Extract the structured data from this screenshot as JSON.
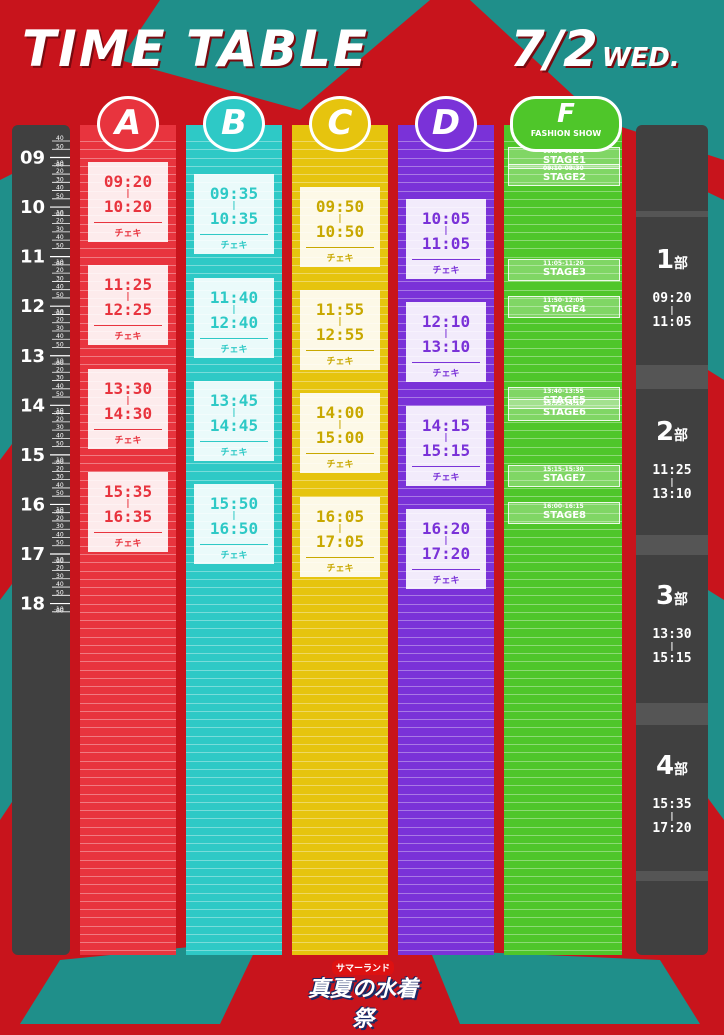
{
  "header": {
    "title": "TIME TABLE",
    "date": "7/2",
    "weekday": "WED."
  },
  "colors": {
    "background_red": "#c8141c",
    "background_teal": "#1f8f8a",
    "ruler": "#404040",
    "stage_A": "#e8343e",
    "stage_B": "#2ec9c6",
    "stage_C": "#e6c40e",
    "stage_D": "#7a32d8",
    "stage_F": "#4fc62a"
  },
  "stages": [
    {
      "id": "A",
      "label": "A",
      "color": "#e8343e"
    },
    {
      "id": "B",
      "label": "B",
      "color": "#2ec9c6"
    },
    {
      "id": "C",
      "label": "C",
      "color": "#e6c40e"
    },
    {
      "id": "D",
      "label": "D",
      "color": "#7a32d8"
    }
  ],
  "fashion": {
    "label": "F",
    "sublabel": "FASHION SHOW"
  },
  "ruler": {
    "hour_labels": [
      "09",
      "10",
      "11",
      "12",
      "13",
      "14",
      "15",
      "16",
      "17",
      "18"
    ],
    "hour_suffix": ":00",
    "minute_labels": [
      "10",
      "20",
      "30",
      "40",
      "50"
    ],
    "start_minute_label": "40"
  },
  "schedule": [
    {
      "stage": "A",
      "start": "09:20",
      "end": "10:20",
      "label": "チェキ"
    },
    {
      "stage": "A",
      "start": "11:25",
      "end": "12:25",
      "label": "チェキ"
    },
    {
      "stage": "A",
      "start": "13:30",
      "end": "14:30",
      "label": "チェキ"
    },
    {
      "stage": "A",
      "start": "15:35",
      "end": "16:35",
      "label": "チェキ"
    },
    {
      "stage": "B",
      "start": "09:35",
      "end": "10:35",
      "label": "チェキ"
    },
    {
      "stage": "B",
      "start": "11:40",
      "end": "12:40",
      "label": "チェキ"
    },
    {
      "stage": "B",
      "start": "13:45",
      "end": "14:45",
      "label": "チェキ"
    },
    {
      "stage": "B",
      "start": "15:50",
      "end": "16:50",
      "label": "チェキ"
    },
    {
      "stage": "C",
      "start": "09:50",
      "end": "10:50",
      "label": "チェキ"
    },
    {
      "stage": "C",
      "start": "11:55",
      "end": "12:55",
      "label": "チェキ"
    },
    {
      "stage": "C",
      "start": "14:00",
      "end": "15:00",
      "label": "チェキ"
    },
    {
      "stage": "C",
      "start": "16:05",
      "end": "17:05",
      "label": "チェキ"
    },
    {
      "stage": "D",
      "start": "10:05",
      "end": "11:05",
      "label": "チェキ"
    },
    {
      "stage": "D",
      "start": "12:10",
      "end": "13:10",
      "label": "チェキ"
    },
    {
      "stage": "D",
      "start": "14:15",
      "end": "15:15",
      "label": "チェキ"
    },
    {
      "stage": "D",
      "start": "16:20",
      "end": "17:20",
      "label": "チェキ"
    }
  ],
  "fashion_shows": [
    {
      "time": "08:50-09:10",
      "name": "STAGE1",
      "start_min": 530
    },
    {
      "time": "09:10-09:30",
      "name": "STAGE2",
      "start_min": 550
    },
    {
      "time": "11:05-11:20",
      "name": "STAGE3",
      "start_min": 665
    },
    {
      "time": "11:50-12:05",
      "name": "STAGE4",
      "start_min": 710
    },
    {
      "time": "13:40-13:55",
      "name": "STAGE5",
      "start_min": 820
    },
    {
      "time": "13:55-14:10",
      "name": "STAGE6",
      "start_min": 835
    },
    {
      "time": "15:15-15:30",
      "name": "STAGE7",
      "start_min": 915
    },
    {
      "time": "16:00-16:15",
      "name": "STAGE8",
      "start_min": 960
    }
  ],
  "parts": [
    {
      "label": "1",
      "suffix": "部",
      "start": "09:20",
      "end": "11:05"
    },
    {
      "label": "2",
      "suffix": "部",
      "start": "11:25",
      "end": "13:10"
    },
    {
      "label": "3",
      "suffix": "部",
      "start": "13:30",
      "end": "15:15"
    },
    {
      "label": "4",
      "suffix": "部",
      "start": "15:35",
      "end": "17:20"
    }
  ],
  "footer": {
    "brand": "サマーランド",
    "event": "真夏の水着祭"
  }
}
